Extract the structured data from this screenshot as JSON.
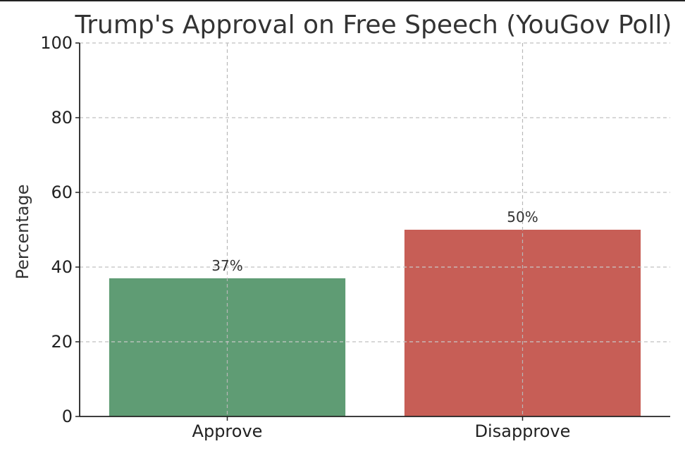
{
  "chart_data": {
    "type": "bar",
    "title": "Trump's Approval on Free Speech (YouGov Poll)",
    "xlabel": "",
    "ylabel": "Percentage",
    "categories": [
      "Approve",
      "Disapprove"
    ],
    "values": [
      37,
      50
    ],
    "value_labels": [
      "37%",
      "50%"
    ],
    "colors": [
      "#5f9c74",
      "#c75e56"
    ],
    "ylim": [
      0,
      100
    ],
    "yticks": [
      0,
      20,
      40,
      60,
      80,
      100
    ],
    "grid": true,
    "legend": "none"
  }
}
